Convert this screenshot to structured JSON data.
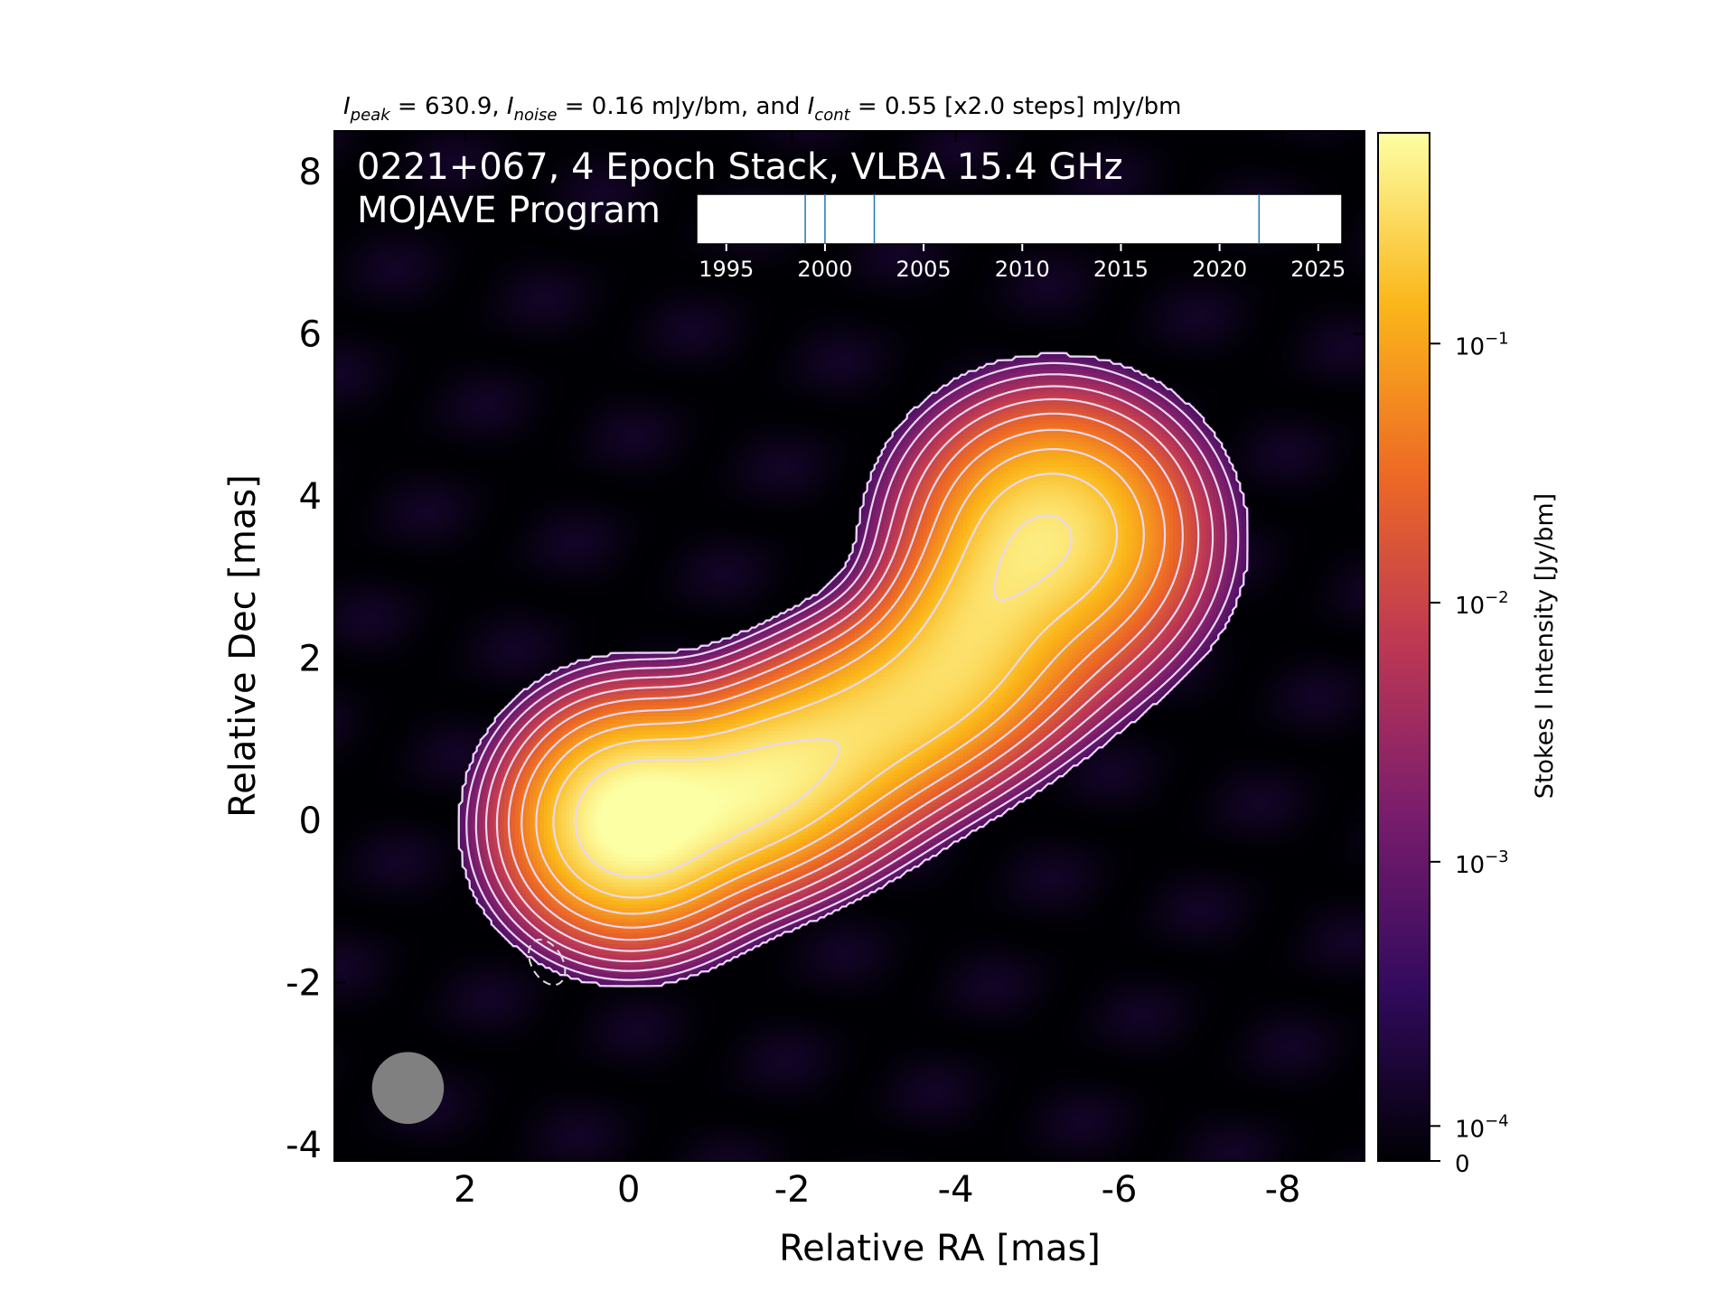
{
  "chart_data": {
    "type": "heatmap",
    "header": {
      "I": "I",
      "peak_sub": "peak",
      "peak_val": " = 630.9, ",
      "noise_sub": "noise",
      "noise_val": " = 0.16 mJy/bm, and ",
      "cont_sub": "cont",
      "cont_val": " = 0.55 [x2.0 steps] mJy/bm"
    },
    "title_line1": "0221+067, 4 Epoch Stack, VLBA 15.4 GHz",
    "title_line2": "MOJAVE Program",
    "xlabel": "Relative RA [mas]",
    "ylabel": "Relative Dec [mas]",
    "colorbar_label": "Stokes I Intensity [Jy/bm]",
    "xlim": [
      3.6,
      -9.0
    ],
    "ylim": [
      -4.2,
      8.5
    ],
    "x_ticks": [
      {
        "v": 2,
        "label": "2"
      },
      {
        "v": 0,
        "label": "0"
      },
      {
        "v": -2,
        "label": "-2"
      },
      {
        "v": -4,
        "label": "-4"
      },
      {
        "v": -6,
        "label": "-6"
      },
      {
        "v": -8,
        "label": "-8"
      }
    ],
    "y_ticks": [
      {
        "v": 8,
        "label": "8"
      },
      {
        "v": 6,
        "label": "6"
      },
      {
        "v": 4,
        "label": "4"
      },
      {
        "v": 2,
        "label": "2"
      },
      {
        "v": 0,
        "label": "0"
      },
      {
        "v": -2,
        "label": "-2"
      },
      {
        "v": -4,
        "label": "-4"
      }
    ],
    "colorbar_ticks": [
      {
        "frac": 0.795,
        "base": "10",
        "exp": "−1"
      },
      {
        "frac": 0.543,
        "base": "10",
        "exp": "−2"
      },
      {
        "frac": 0.291,
        "base": "10",
        "exp": "−3"
      },
      {
        "frac": 0.034,
        "base": "10",
        "exp": "−4"
      },
      {
        "frac": 0.0,
        "base": "0",
        "exp": ""
      }
    ],
    "colormap": [
      "#000004",
      "#320a5e",
      "#781c6d",
      "#bc3754",
      "#ed6925",
      "#fbb61a",
      "#fcffa4"
    ],
    "components": [
      {
        "x": 0.0,
        "y": 0.0,
        "peak": 1.0,
        "sx": 0.62,
        "sy": 0.62,
        "rot": 0
      },
      {
        "x": -1.3,
        "y": 0.3,
        "peak": 0.72,
        "sx": 0.95,
        "sy": 0.55,
        "rot": -18
      },
      {
        "x": -3.2,
        "y": 1.3,
        "peak": 0.5,
        "sx": 1.3,
        "sy": 0.55,
        "rot": -25
      },
      {
        "x": -5.2,
        "y": 3.55,
        "peak": 0.6,
        "sx": 0.75,
        "sy": 0.7,
        "rot": 0
      },
      {
        "x": -4.3,
        "y": 2.6,
        "peak": 0.4,
        "sx": 0.8,
        "sy": 0.5,
        "rot": -50
      }
    ],
    "contour_levels": [
      0.22,
      0.3,
      0.38,
      0.46,
      0.54,
      0.62,
      0.7,
      0.78,
      0.86,
      0.94
    ],
    "beam": {
      "x": 2.7,
      "y": -3.3,
      "major": 0.88,
      "minor": 0.88,
      "color": "#808080"
    },
    "negative_contour": {
      "x": 1.0,
      "y": -1.75,
      "major": 0.6,
      "minor": 0.38,
      "pa": 30
    },
    "epoch_inset": {
      "xlim": [
        1993.5,
        2026.2
      ],
      "ticks": [
        {
          "v": 1995,
          "label": "1995"
        },
        {
          "v": 2000,
          "label": "2000"
        },
        {
          "v": 2005,
          "label": "2005"
        },
        {
          "v": 2010,
          "label": "2010"
        },
        {
          "v": 2015,
          "label": "2015"
        },
        {
          "v": 2020,
          "label": "2020"
        },
        {
          "v": 2025,
          "label": "2025"
        }
      ],
      "epochs": [
        1999.0,
        2000.0,
        2002.5,
        2022.0
      ],
      "epoch_color": "#1f77b4"
    }
  }
}
